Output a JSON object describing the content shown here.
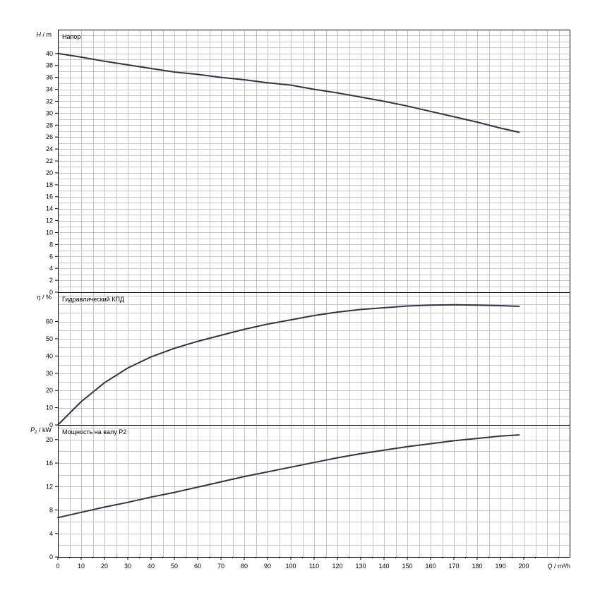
{
  "chart_data": [
    {
      "type": "line",
      "panel": "head",
      "title": "Напор",
      "ylabel_symbol": "H",
      "ylabel_unit": "m",
      "xlim": [
        0,
        220
      ],
      "ylim": [
        0,
        44
      ],
      "yticks": [
        0,
        2,
        4,
        6,
        8,
        10,
        12,
        14,
        16,
        18,
        20,
        22,
        24,
        26,
        28,
        30,
        32,
        34,
        36,
        38,
        40
      ],
      "series": [
        {
          "x": [
            0,
            10,
            20,
            30,
            40,
            50,
            60,
            70,
            80,
            90,
            100,
            110,
            120,
            130,
            140,
            150,
            160,
            170,
            180,
            190,
            198
          ],
          "y": [
            40.0,
            39.4,
            38.7,
            38.1,
            37.5,
            36.9,
            36.5,
            36.0,
            35.6,
            35.1,
            34.7,
            34.0,
            33.4,
            32.7,
            32.0,
            31.2,
            30.3,
            29.4,
            28.5,
            27.5,
            26.8
          ]
        }
      ]
    },
    {
      "type": "line",
      "panel": "efficiency",
      "title": "Гидравлический КПД",
      "ylabel_symbol": "η",
      "ylabel_unit": "%",
      "xlim": [
        0,
        220
      ],
      "ylim": [
        0,
        77
      ],
      "yticks": [
        0,
        10,
        20,
        30,
        40,
        50,
        60
      ],
      "series": [
        {
          "x": [
            0,
            10,
            20,
            30,
            40,
            50,
            60,
            70,
            80,
            90,
            100,
            110,
            120,
            130,
            140,
            150,
            160,
            170,
            180,
            190,
            198
          ],
          "y": [
            0,
            13.5,
            24.5,
            33.0,
            39.5,
            44.5,
            48.5,
            52.0,
            55.5,
            58.5,
            61.0,
            63.5,
            65.5,
            67.0,
            68.0,
            69.0,
            69.5,
            69.7,
            69.5,
            69.2,
            68.8
          ]
        }
      ]
    },
    {
      "type": "line",
      "panel": "power",
      "title": "Мощность на валу P2",
      "ylabel_symbol": "P",
      "ylabel_subscript": "2",
      "ylabel_unit": "kW",
      "xlim": [
        0,
        220
      ],
      "ylim": [
        0,
        22.5
      ],
      "yticks": [
        0,
        4,
        8,
        12,
        16,
        20
      ],
      "series": [
        {
          "x": [
            0,
            10,
            20,
            30,
            40,
            50,
            60,
            70,
            80,
            90,
            100,
            110,
            120,
            130,
            140,
            150,
            160,
            170,
            180,
            190,
            198
          ],
          "y": [
            6.7,
            7.6,
            8.5,
            9.3,
            10.2,
            11.0,
            11.9,
            12.8,
            13.7,
            14.5,
            15.3,
            16.1,
            16.9,
            17.6,
            18.2,
            18.8,
            19.3,
            19.8,
            20.2,
            20.6,
            20.8
          ]
        }
      ]
    }
  ],
  "x_axis": {
    "symbol": "Q",
    "unit": "m³/h",
    "ticks": [
      0,
      10,
      20,
      30,
      40,
      50,
      60,
      70,
      80,
      90,
      100,
      110,
      120,
      130,
      140,
      150,
      160,
      170,
      180,
      190,
      200
    ]
  },
  "grid": true,
  "colors": {
    "curve": "#2f3542",
    "grid": "#c4c4c4",
    "frame": "#000000"
  }
}
